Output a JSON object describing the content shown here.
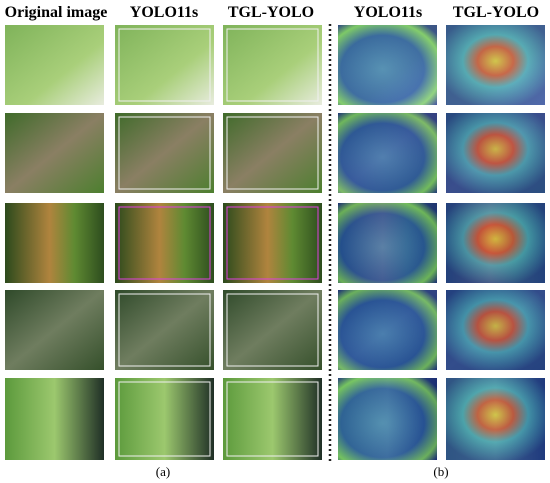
{
  "headers": [
    "Original image",
    "YOLO11s",
    "TGL-YOLO",
    "YOLO11s",
    "TGL-YOLO"
  ],
  "captions": [
    "(a)",
    "(b)"
  ]
}
